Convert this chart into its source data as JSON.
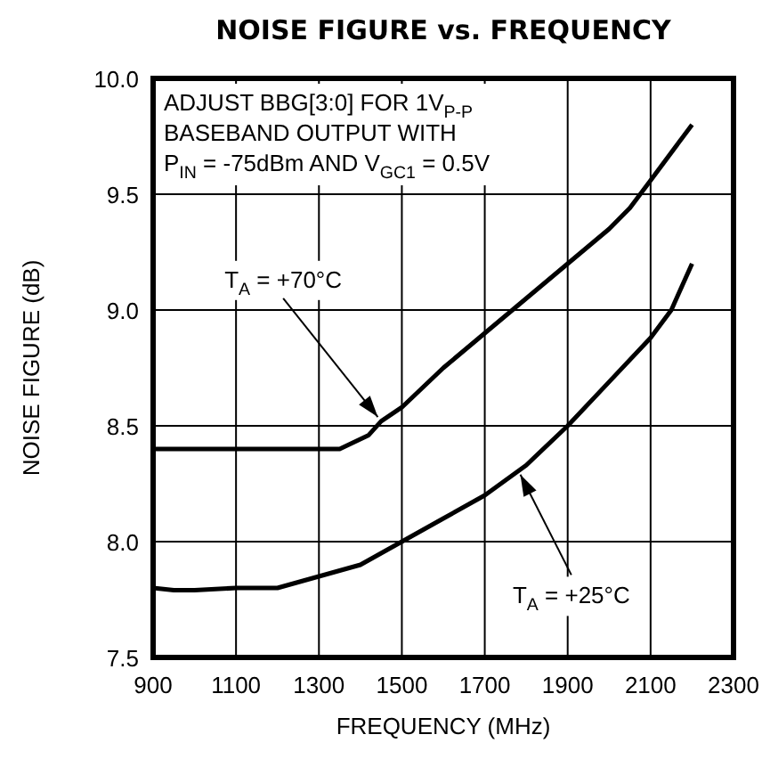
{
  "chart_data": {
    "type": "line",
    "title": "NOISE FIGURE vs. FREQUENCY",
    "xlabel": "FREQUENCY (MHz)",
    "ylabel": "NOISE FIGURE (dB)",
    "x": [
      900,
      1000,
      1100,
      1200,
      1300,
      1350,
      1420,
      1450,
      1500,
      1600,
      1700,
      1800,
      1900,
      2000,
      2050,
      2100,
      2200
    ],
    "series": [
      {
        "color": "#000000",
        "values": [
          8.4,
          8.4,
          8.4,
          8.4,
          8.4,
          8.4,
          8.46,
          8.52,
          8.58,
          8.75,
          8.9,
          9.05,
          9.2,
          9.35,
          9.44,
          9.56,
          9.8
        ]
      },
      {
        "color": "#000000",
        "x": [
          900,
          950,
          1000,
          1100,
          1200,
          1300,
          1400,
          1500,
          1600,
          1700,
          1800,
          1900,
          2000,
          2100,
          2150,
          2200
        ],
        "values": [
          7.8,
          7.79,
          7.79,
          7.8,
          7.8,
          7.85,
          7.9,
          8.0,
          8.1,
          8.2,
          8.33,
          8.5,
          8.69,
          8.88,
          9.0,
          9.2
        ]
      }
    ],
    "xlim": [
      900,
      2300
    ],
    "xticks": [
      900,
      1100,
      1300,
      1500,
      1700,
      1900,
      2100,
      2300
    ],
    "ylim": [
      7.5,
      10.0
    ],
    "yticks": [
      {
        "value": 7.5,
        "label": "7.5"
      },
      {
        "value": 8.0,
        "label": "8.0"
      },
      {
        "value": 8.5,
        "label": "8.5"
      },
      {
        "value": 9.0,
        "label": "9.0"
      },
      {
        "value": 9.5,
        "label": "9.5"
      },
      {
        "value": 10.0,
        "label": "10.0"
      }
    ],
    "grid": true,
    "line_style": "solid",
    "marker": "none",
    "annotations": [
      "ADJUST BBG[3:0] FOR 1V$_{P-P}$\nBASEBAND OUTPUT WITH\nP$_{IN}$ = -75dBm AND V$_{GC1}$ = 0.5V",
      {
        "text": "T$_{A}$ = +70°C",
        "x": 1450,
        "y": 8.52
      },
      {
        "text": "T$_{A}$ = +25°C",
        "x": 1780,
        "y": 8.31
      }
    ]
  }
}
